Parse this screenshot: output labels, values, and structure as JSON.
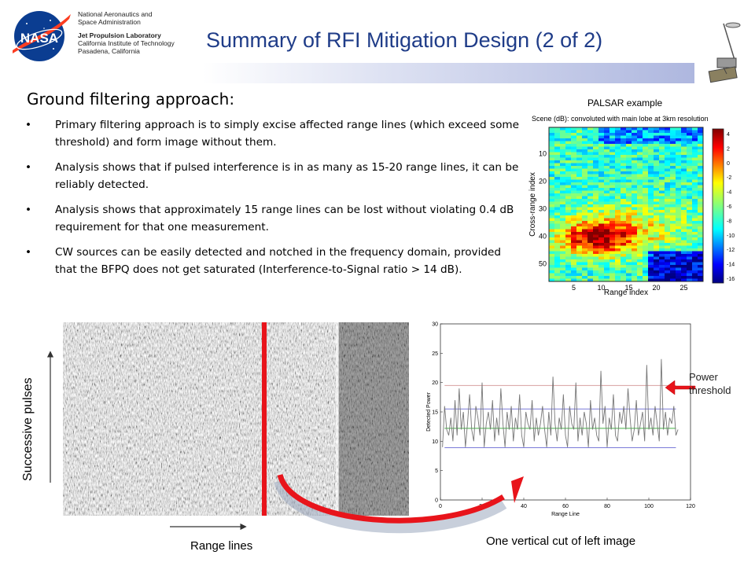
{
  "header": {
    "org_line1": "National Aeronautics and",
    "org_line2": "Space Administration",
    "lab_name": "Jet Propulsion Laboratory",
    "lab_line2": "California Institute of Technology",
    "lab_line3": "Pasadena, California",
    "logo_text": "NASA",
    "title": "Summary of RFI Mitigation Design (2 of 2)"
  },
  "content": {
    "heading": "Ground filtering approach:",
    "bullet_glyph": "•",
    "bullets": [
      "Primary filtering approach is to simply excise affected range lines (which exceed some threshold) and form image without them.",
      "Analysis shows that if pulsed interference is in as many as 15-20 range lines, it can be reliably detected.",
      "Analysis shows that approximately 15 range lines can be lost without violating 0.4 dB requirement for that one measurement.",
      "CW sources can be easily detected and notched in the frequency domain, provided that the BFPQ does not get saturated (Interference-to-Signal ratio > 14 dB)."
    ]
  },
  "palsar": {
    "caption": "PALSAR example",
    "title": "Scene (dB): convoluted with main lobe at 3km resolution",
    "xlabel": "Range index",
    "ylabel": "Cross-range index",
    "xticks": [
      "5",
      "10",
      "15",
      "20",
      "25"
    ],
    "yticks": [
      "10",
      "20",
      "30",
      "40",
      "50"
    ],
    "cbar_ticks": [
      "4",
      "2",
      "0",
      "-2",
      "-4",
      "-6",
      "-8",
      "-10",
      "-12",
      "-14",
      "-16"
    ]
  },
  "bottom": {
    "ylabel": "Successive pulses",
    "xlabel": "Range lines",
    "cut_caption": "One vertical cut of left image",
    "power_label_1": "Power",
    "power_label_2": "threshold"
  },
  "chart_data": {
    "type": "line",
    "title": "",
    "xlabel": "Range Line",
    "ylabel": "Detected Power",
    "xlim": [
      0,
      120
    ],
    "ylim": [
      0,
      30
    ],
    "xticks": [
      "0",
      "20",
      "40",
      "60",
      "80",
      "100",
      "120"
    ],
    "yticks": [
      "0",
      "5",
      "10",
      "15",
      "20",
      "25",
      "30"
    ],
    "threshold_lines": [
      19.5,
      15.5,
      12.2,
      8.9
    ],
    "series": [
      {
        "values": [
          9,
          16,
          12,
          11,
          14,
          10,
          17,
          11,
          19,
          12,
          15,
          9,
          13,
          18,
          12,
          10,
          16,
          14,
          11,
          20,
          9,
          13,
          15,
          12,
          17,
          10,
          14,
          11,
          19,
          13,
          9,
          15,
          12,
          16,
          10,
          14,
          12,
          18,
          11,
          9,
          15,
          13,
          12,
          17,
          10,
          14,
          11,
          13,
          16,
          12,
          9,
          15,
          11,
          21,
          13,
          10,
          14,
          12,
          18,
          11,
          9,
          16,
          13,
          12,
          20,
          10,
          14,
          11,
          15,
          13,
          9,
          17,
          12,
          14,
          11,
          10,
          22,
          13,
          16,
          9,
          14,
          12,
          18,
          11,
          10,
          15,
          13,
          16,
          12,
          19,
          14,
          10,
          12,
          17,
          11,
          13,
          15,
          10,
          23,
          12,
          14,
          11,
          16,
          13,
          10,
          24,
          12,
          15,
          11,
          14,
          13,
          16,
          11,
          12
        ]
      }
    ]
  }
}
